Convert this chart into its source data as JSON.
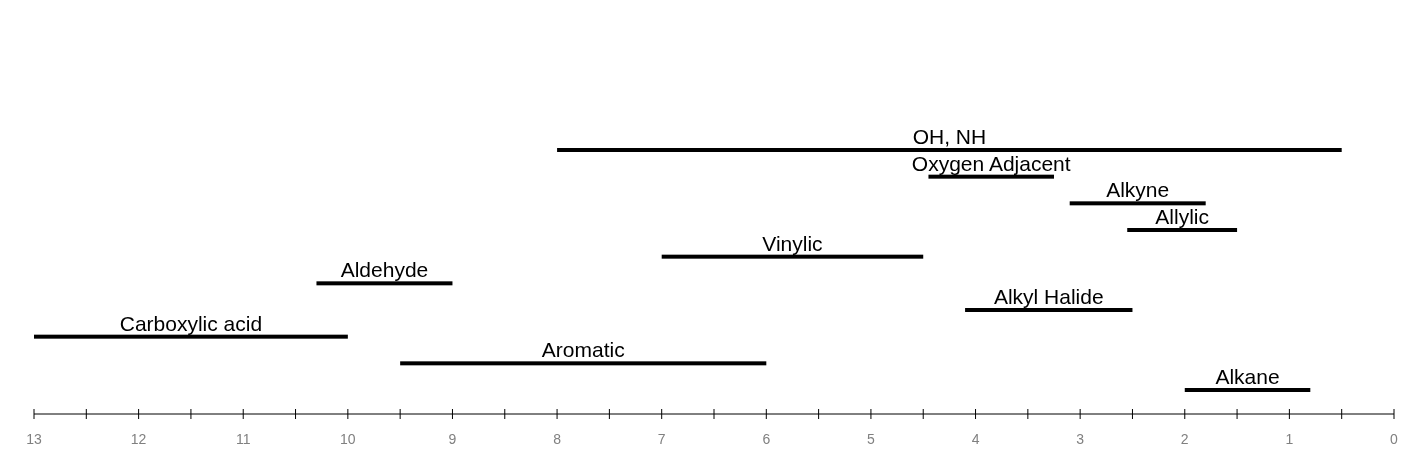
{
  "chart_data": {
    "type": "bar",
    "orientation": "horizontal",
    "categories": [
      "OH, NH",
      "Oxygen Adjacent",
      "Alkyne",
      "Allylic",
      "Vinylic",
      "Aldehyde",
      "Alkyl Halide",
      "Carboxylic acid",
      "Aromatic",
      "Alkane"
    ],
    "base": [
      0.5,
      3.25,
      1.8,
      1.5,
      4.5,
      9,
      2.5,
      10,
      6,
      0.8
    ],
    "values": [
      7.5,
      1.2,
      1.3,
      1.05,
      2.5,
      1.3,
      1.6,
      3,
      3.5,
      1.2
    ],
    "color": "#000000",
    "xlim": [
      13,
      0
    ],
    "xticks": [
      13,
      {
        "value": 12.5,
        "label": null
      },
      12,
      {
        "value": 11.5,
        "label": null
      },
      11,
      {
        "value": 10.5,
        "label": null
      },
      10,
      {
        "value": 9.5,
        "label": null
      },
      9,
      {
        "value": 8.5,
        "label": null
      },
      8,
      {
        "value": 7.5,
        "label": null
      },
      7,
      {
        "value": 6.5,
        "label": null
      },
      6,
      {
        "value": 5.5,
        "label": null
      },
      5,
      {
        "value": 4.5,
        "label": null
      },
      4,
      {
        "value": 3.5,
        "label": null
      },
      3,
      {
        "value": 2.5,
        "label": null
      },
      2,
      {
        "value": 1.5,
        "label": null
      },
      1,
      {
        "value": 0.5,
        "label": null
      },
      0
    ],
    "grid": false
  }
}
